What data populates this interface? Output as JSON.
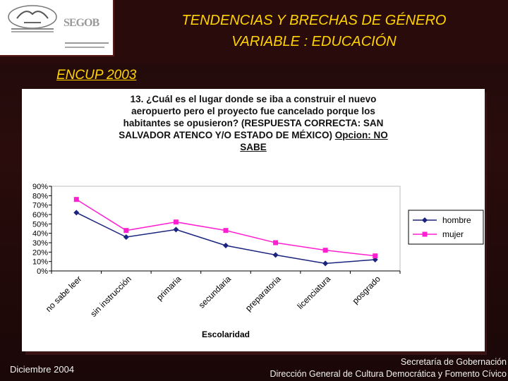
{
  "header": {
    "title_line1": "TENDENCIAS Y BRECHAS DE GÉNERO",
    "title_line2": "VARIABLE : EDUCACIÓN",
    "logo_text": "SEGOB",
    "logo_icon": "eagle-emblem-icon"
  },
  "survey_label": "ENCUP 2003",
  "question": {
    "line1": "13. ¿Cuál es el lugar donde se iba a construir el nuevo",
    "line2": "aeropuerto pero el proyecto fue cancelado porque los",
    "line3": "habitantes se opusieron? (RESPUESTA CORRECTA: SAN",
    "line4a": "SALVADOR ATENCO Y/O ESTADO DE MÉXICO)",
    "line4b": "Opcion: NO",
    "line5": "SABE"
  },
  "chart_data": {
    "type": "line",
    "title": "13. ¿Cuál es el lugar donde se iba a construir el nuevo aeropuerto pero el proyecto fue cancelado porque los habitantes se opusieron? (RESPUESTA CORRECTA: SAN SALVADOR ATENCO Y/O ESTADO DE MÉXICO) Opcion: NO SABE",
    "xlabel": "Escolaridad",
    "ylabel": "",
    "ylim": [
      0,
      0.9
    ],
    "y_ticks": [
      "0%",
      "10%",
      "20%",
      "30%",
      "40%",
      "50%",
      "60%",
      "70%",
      "80%",
      "90%"
    ],
    "categories": [
      "no sabe leer",
      "sin instrucción",
      "primaria",
      "secundaria",
      "preparatoria",
      "licenciatura",
      "posgrado"
    ],
    "series": [
      {
        "name": "hombre",
        "values": [
          0.62,
          0.36,
          0.44,
          0.27,
          0.17,
          0.08,
          0.12
        ],
        "color": "#1a237e",
        "marker": "diamond"
      },
      {
        "name": "mujer",
        "values": [
          0.76,
          0.43,
          0.52,
          0.43,
          0.3,
          0.22,
          0.16
        ],
        "color": "#ff1fd0",
        "marker": "square"
      }
    ],
    "grid": false,
    "legend": "right"
  },
  "footer": {
    "date": "Diciembre  2004",
    "org_line1": "Secretaría de Gobernación",
    "org_line2": "Dirección General de Cultura Democrática y Fomento Cívico"
  }
}
